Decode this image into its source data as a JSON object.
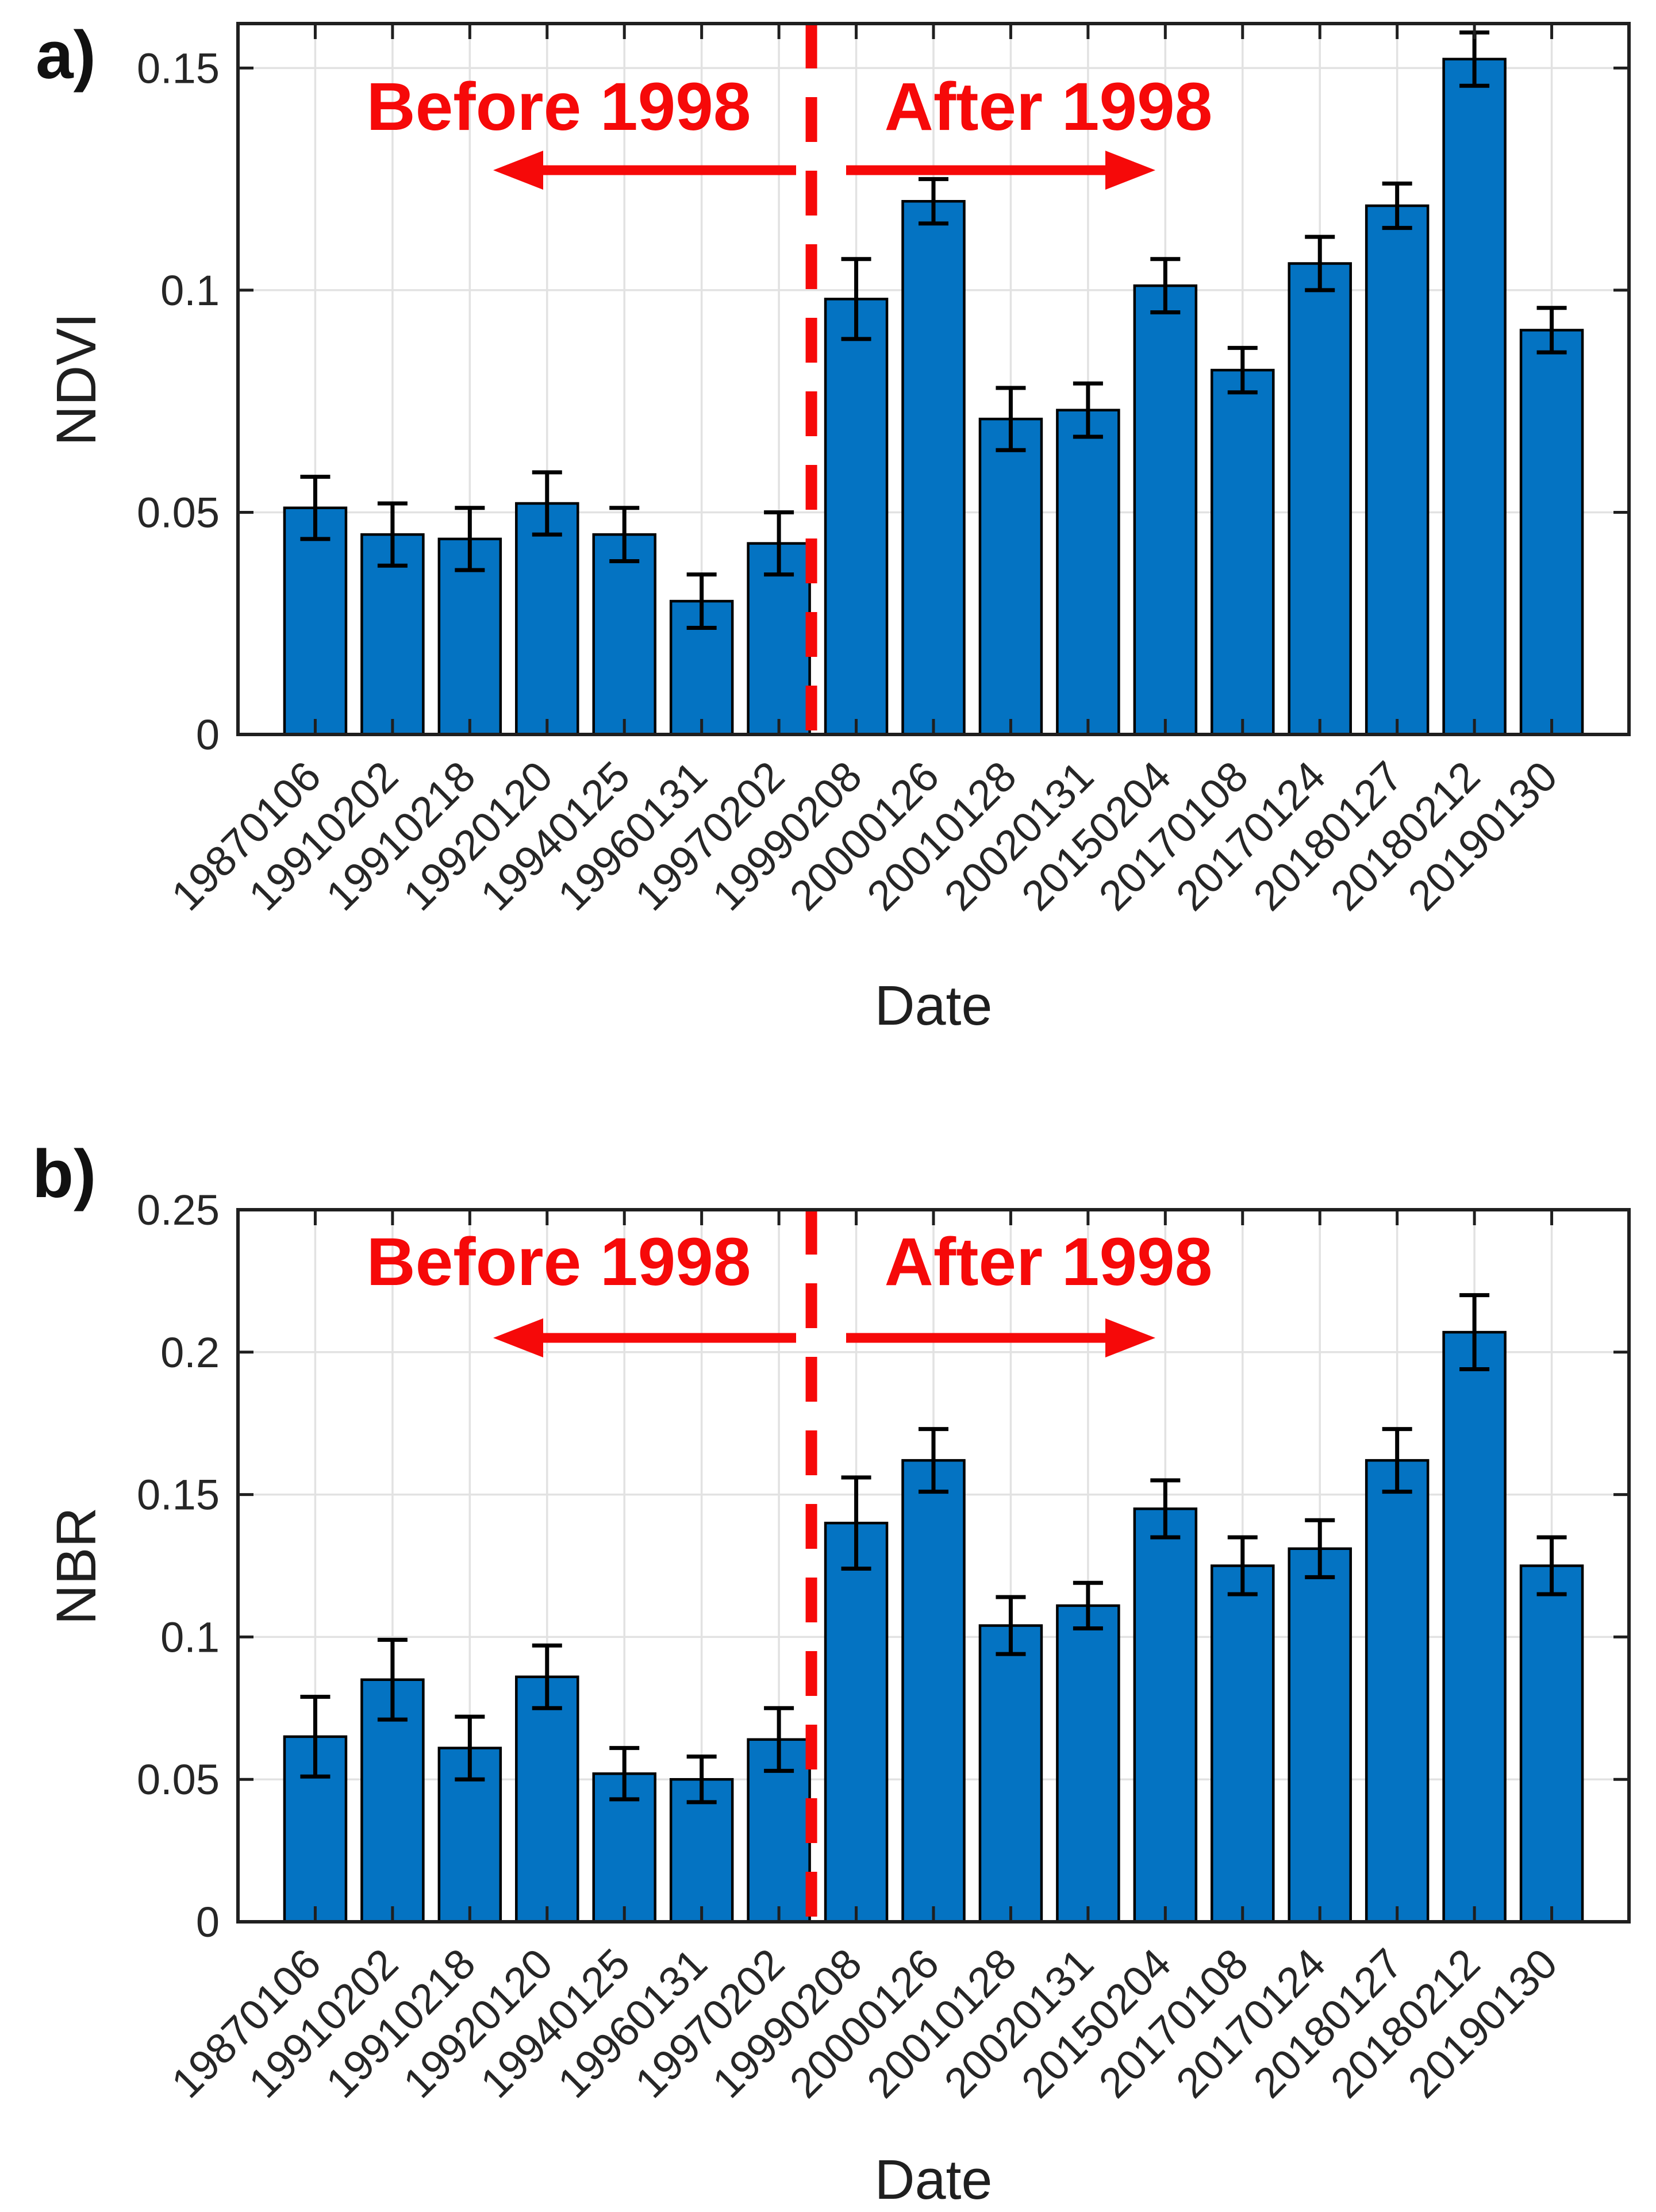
{
  "colors": {
    "background": "#ffffff",
    "bar_fill": "#0473c2",
    "bar_edge": "#000000",
    "error_bar": "#000000",
    "axis": "#1f1f1f",
    "grid": "#e2e2e2",
    "tick_label": "#262626",
    "annotation_red": "#f60909"
  },
  "chart_data": [
    {
      "type": "bar",
      "panel_label": "a)",
      "ylabel": "NDVI",
      "xlabel": "Date",
      "ylim": [
        0,
        0.16
      ],
      "grid": "on",
      "legend": "none",
      "categories": [
        "19870106",
        "19910202",
        "19910218",
        "19920120",
        "19940125",
        "19960131",
        "19970202",
        "19990208",
        "20000126",
        "20010128",
        "20020131",
        "20150204",
        "20170108",
        "20170124",
        "20180127",
        "20180212",
        "20190130"
      ],
      "values": [
        0.051,
        0.045,
        0.044,
        0.052,
        0.045,
        0.03,
        0.043,
        0.098,
        0.12,
        0.071,
        0.073,
        0.101,
        0.082,
        0.106,
        0.119,
        0.152,
        0.091
      ],
      "errors": [
        0.007,
        0.007,
        0.007,
        0.007,
        0.006,
        0.006,
        0.007,
        0.009,
        0.005,
        0.007,
        0.006,
        0.006,
        0.005,
        0.006,
        0.005,
        0.006,
        0.005
      ],
      "yticks": [
        {
          "value": 0,
          "label": "0"
        },
        {
          "value": 0.05,
          "label": "0.05"
        },
        {
          "value": 0.1,
          "label": "0.1"
        },
        {
          "value": 0.15,
          "label": "0.15"
        }
      ],
      "annotations": {
        "before_label": "Before 1998",
        "after_label": "After 1998",
        "divider_between_categories": [
          "19970202",
          "19990208"
        ],
        "divider_style": "red dashed vertical line",
        "arrow_y_value": 0.127
      }
    },
    {
      "type": "bar",
      "panel_label": "b)",
      "ylabel": "NBR",
      "xlabel": "Date",
      "ylim": [
        0,
        0.25
      ],
      "grid": "on",
      "legend": "none",
      "categories": [
        "19870106",
        "19910202",
        "19910218",
        "19920120",
        "19940125",
        "19960131",
        "19970202",
        "19990208",
        "20000126",
        "20010128",
        "20020131",
        "20150204",
        "20170108",
        "20170124",
        "20180127",
        "20180212",
        "20190130"
      ],
      "values": [
        0.065,
        0.085,
        0.061,
        0.086,
        0.052,
        0.05,
        0.064,
        0.14,
        0.162,
        0.104,
        0.111,
        0.145,
        0.125,
        0.131,
        0.162,
        0.207,
        0.125
      ],
      "errors": [
        0.014,
        0.014,
        0.011,
        0.011,
        0.009,
        0.008,
        0.011,
        0.016,
        0.011,
        0.01,
        0.008,
        0.01,
        0.01,
        0.01,
        0.011,
        0.013,
        0.01
      ],
      "yticks": [
        {
          "value": 0,
          "label": "0"
        },
        {
          "value": 0.05,
          "label": "0.05"
        },
        {
          "value": 0.1,
          "label": "0.1"
        },
        {
          "value": 0.15,
          "label": "0.15"
        },
        {
          "value": 0.2,
          "label": "0.2"
        },
        {
          "value": 0.25,
          "label": "0.25"
        }
      ],
      "annotations": {
        "before_label": "Before 1998",
        "after_label": "After 1998",
        "divider_between_categories": [
          "19970202",
          "19990208"
        ],
        "divider_style": "red dashed vertical line",
        "arrow_y_value": 0.205
      }
    }
  ]
}
